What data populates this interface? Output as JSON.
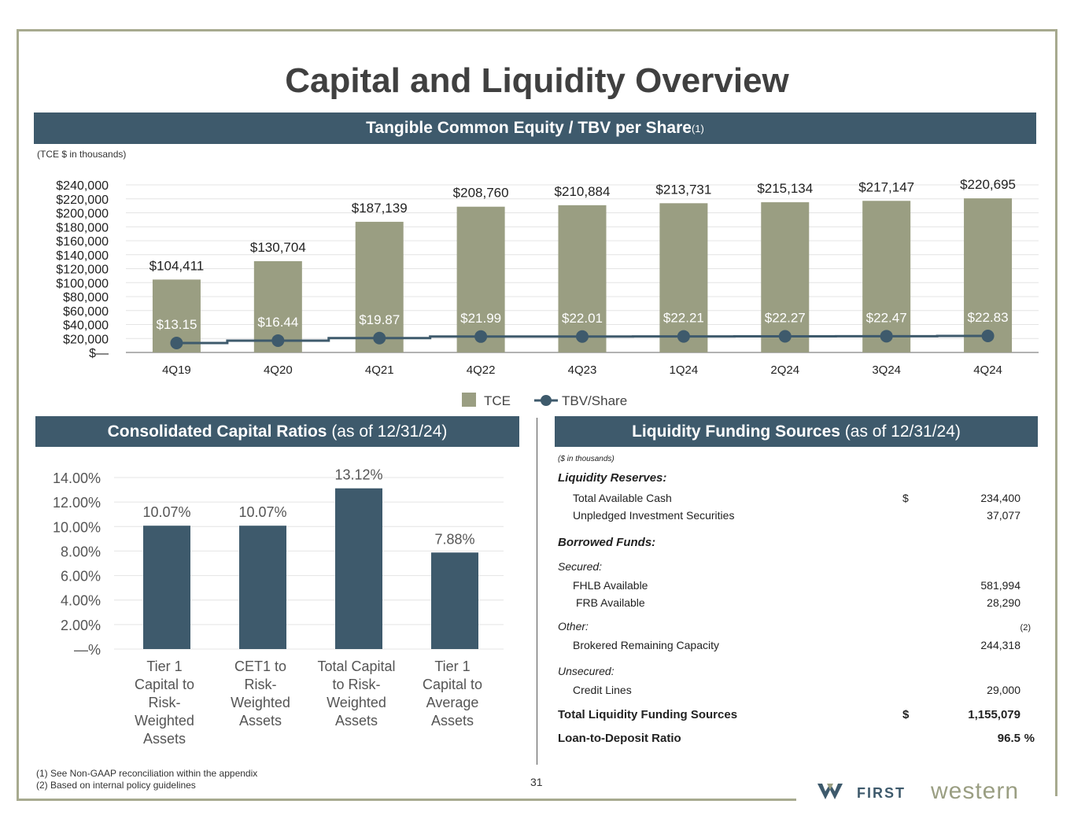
{
  "page": {
    "title": "Capital and Liquidity Overview",
    "page_number": "31",
    "footnotes": [
      "(1) See Non-GAAP reconciliation within the appendix",
      "(2) Based on internal policy guidelines"
    ],
    "logo_text_first": "FIRST",
    "logo_text_western": "western"
  },
  "tce_section": {
    "band_title": "Tangible Common Equity / TBV per Share",
    "band_sup": "(1)",
    "units_note": "(TCE $ in thousands)"
  },
  "capital_section": {
    "band_title_bold": "Consolidated Capital Ratios",
    "band_title_rest": " (as of 12/31/24)"
  },
  "liquidity_section": {
    "band_title_bold": "Liquidity Funding Sources",
    "band_title_rest": " (as of 12/31/24)",
    "units_note": "($ in thousands)",
    "reserves_header": "Liquidity Reserves:",
    "cash_label": "Total Available Cash",
    "cash_dollar": "$",
    "cash_value": "234,400",
    "securities_label": "Unpledged Investment Securities",
    "securities_value": "37,077",
    "borrowed_header": "Borrowed Funds:",
    "secured_label": "Secured:",
    "fhlb_label": "FHLB Available",
    "fhlb_value": "581,994",
    "frb_label": "FRB Available",
    "frb_value": "28,290",
    "other_label": "Other:",
    "other_note": "(2)",
    "brokered_label": "Brokered Remaining Capacity",
    "brokered_value": "244,318",
    "unsecured_label": "Unsecured:",
    "credit_label": "Credit Lines",
    "credit_value": "29,000",
    "total_label": "Total Liquidity Funding Sources",
    "total_dollar": "$",
    "total_value": "1,155,079",
    "ltd_label": "Loan-to-Deposit Ratio",
    "ltd_value": "96.5",
    "ltd_pct": "%"
  },
  "chart_data": [
    {
      "type": "bar",
      "title": "Tangible Common Equity / TBV per Share",
      "categories": [
        "4Q19",
        "4Q20",
        "4Q21",
        "4Q22",
        "4Q23",
        "1Q24",
        "2Q24",
        "3Q24",
        "4Q24"
      ],
      "series": [
        {
          "name": "TCE",
          "kind": "bar",
          "color": "#9a9e82",
          "values": [
            104411,
            130704,
            187139,
            208760,
            210884,
            213731,
            215134,
            217147,
            220695
          ],
          "labels": [
            "$104,411",
            "$130,704",
            "$187,139",
            "$208,760",
            "$210,884",
            "$213,731",
            "$215,134",
            "$217,147",
            "$220,695"
          ]
        },
        {
          "name": "TBV/Share",
          "kind": "line",
          "color": "#3e5a6c",
          "values": [
            13.15,
            16.44,
            19.87,
            21.99,
            22.01,
            22.21,
            22.27,
            22.47,
            22.83
          ],
          "labels": [
            "$13.15",
            "$16.44",
            "$19.87",
            "$21.99",
            "$22.01",
            "$22.21",
            "$22.27",
            "$22.47",
            "$22.83"
          ]
        }
      ],
      "ylim": [
        0,
        240000
      ],
      "yticks": [
        "$—",
        "$20,000",
        "$40,000",
        "$60,000",
        "$80,000",
        "$100,000",
        "$120,000",
        "$140,000",
        "$160,000",
        "$180,000",
        "$200,000",
        "$220,000",
        "$240,000"
      ],
      "legend": [
        "TCE",
        "TBV/Share"
      ],
      "legend_position": "bottom-center"
    },
    {
      "type": "bar",
      "title": "Consolidated Capital Ratios (as of 12/31/24)",
      "categories": [
        [
          "Tier 1",
          "Capital to",
          "Risk-",
          "Weighted",
          "Assets"
        ],
        [
          "CET1 to",
          "Risk-",
          "Weighted",
          "Assets"
        ],
        [
          "Total Capital",
          "to Risk-",
          "Weighted",
          "Assets"
        ],
        [
          "Tier 1",
          "Capital to",
          "Average",
          "Assets"
        ]
      ],
      "values": [
        10.07,
        10.07,
        13.12,
        7.88
      ],
      "labels": [
        "10.07%",
        "10.07%",
        "13.12%",
        "7.88%"
      ],
      "color": "#3e5a6c",
      "ylim": [
        0,
        14
      ],
      "yticks": [
        "—%",
        "2.00%",
        "4.00%",
        "6.00%",
        "8.00%",
        "10.00%",
        "12.00%",
        "14.00%"
      ]
    }
  ]
}
